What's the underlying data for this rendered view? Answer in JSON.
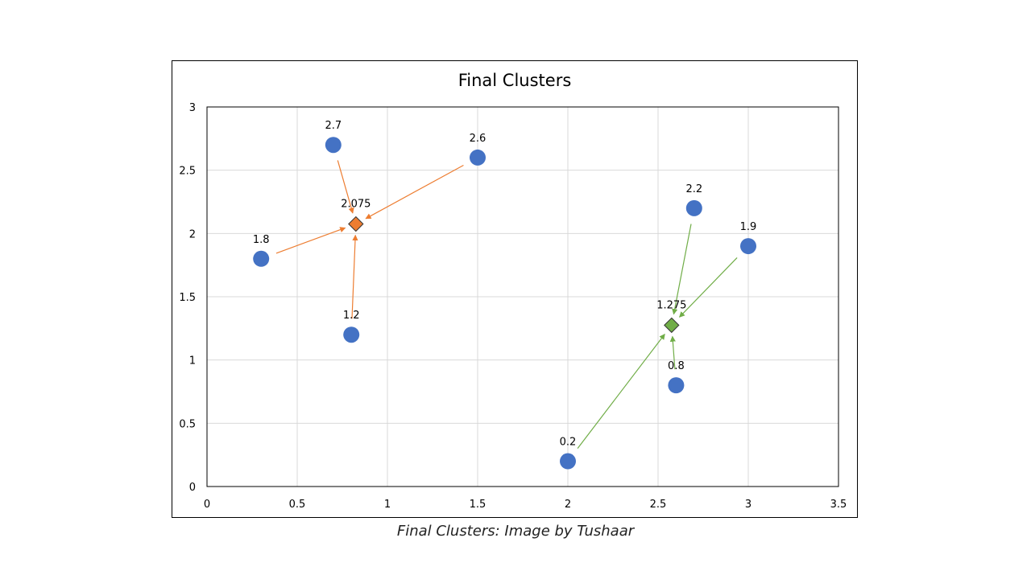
{
  "chart_data": {
    "type": "scatter",
    "title": "Final Clusters",
    "xlim": [
      0,
      3.5
    ],
    "ylim": [
      0,
      3
    ],
    "x_ticks": [
      0,
      0.5,
      1,
      1.5,
      2,
      2.5,
      3,
      3.5
    ],
    "y_ticks": [
      0,
      0.5,
      1,
      1.5,
      2,
      2.5,
      3
    ],
    "x_tick_labels": [
      "0",
      "0.5",
      "1",
      "1.5",
      "2",
      "2.5",
      "3",
      "3.5"
    ],
    "y_tick_labels": [
      "0",
      "0.5",
      "1",
      "1.5",
      "2",
      "2.5",
      "3"
    ],
    "grid": true,
    "points": [
      {
        "x": 0.7,
        "y": 2.7,
        "label": "2.7",
        "cluster": 0
      },
      {
        "x": 1.5,
        "y": 2.6,
        "label": "2.6",
        "cluster": 0
      },
      {
        "x": 0.3,
        "y": 1.8,
        "label": "1.8",
        "cluster": 0
      },
      {
        "x": 0.8,
        "y": 1.2,
        "label": "1.2",
        "cluster": 0
      },
      {
        "x": 2.7,
        "y": 2.2,
        "label": "2.2",
        "cluster": 1
      },
      {
        "x": 3.0,
        "y": 1.9,
        "label": "1.9",
        "cluster": 1
      },
      {
        "x": 2.6,
        "y": 0.8,
        "label": "0.8",
        "cluster": 1
      },
      {
        "x": 2.0,
        "y": 0.2,
        "label": "0.2",
        "cluster": 1
      }
    ],
    "centroids": [
      {
        "x": 0.825,
        "y": 2.075,
        "label": "2.075",
        "color": "#ED7D31"
      },
      {
        "x": 2.575,
        "y": 1.275,
        "label": "1.275",
        "color": "#70AD47"
      }
    ],
    "point_color": "#4472C4"
  },
  "caption": "Final Clusters: Image by Tushaar"
}
